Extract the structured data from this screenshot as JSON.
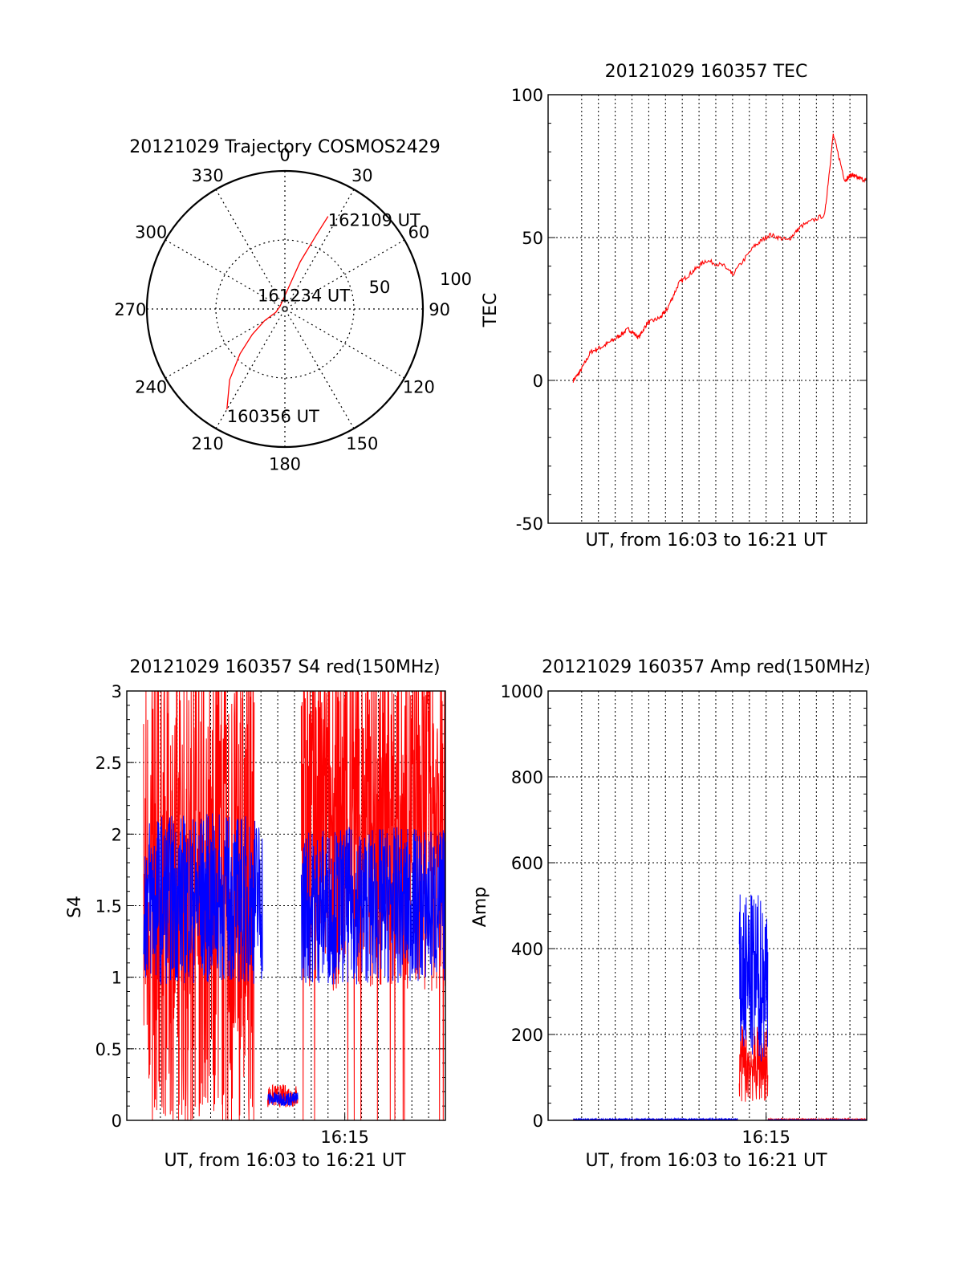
{
  "chart_data": [
    {
      "type": "polar",
      "title": "20121029 Trajectory COSMOS2429",
      "azimuth_labels": [
        "0",
        "30",
        "60",
        "90",
        "120",
        "150",
        "180",
        "210",
        "240",
        "270",
        "300",
        "330"
      ],
      "radial_labels": [
        "50",
        "100"
      ],
      "radial_range": [
        0,
        100
      ],
      "grid": true,
      "track": {
        "points_az_r": [
          [
            210,
            84
          ],
          [
            218,
            65
          ],
          [
            225,
            46
          ],
          [
            232,
            30
          ],
          [
            240,
            17
          ],
          [
            250,
            7
          ],
          [
            300,
            4
          ],
          [
            10,
            16
          ],
          [
            18,
            36
          ],
          [
            23,
            58
          ],
          [
            25,
            74
          ]
        ],
        "color": "#ff0000"
      },
      "annotations": [
        {
          "text": "162109 UT",
          "az": 25,
          "r": 74
        },
        {
          "text": "161234 UT",
          "az": 300,
          "r": 4
        },
        {
          "text": "160356 UT",
          "az": 210,
          "r": 84
        }
      ]
    },
    {
      "type": "line",
      "title": "20121029 160357 TEC",
      "xlabel": "UT, from 16:03 to 16:21 UT",
      "ylabel": "TEC",
      "xlim": [
        16.0333,
        16.35
      ],
      "ylim": [
        -50,
        100
      ],
      "yticks": [
        "100",
        "50",
        "0",
        "-50"
      ],
      "xticks": [],
      "grid": true,
      "series": [
        {
          "color": "#ff0000",
          "x": [
            16.0583,
            16.065,
            16.0758,
            16.0883,
            16.1017,
            16.1133,
            16.1233,
            16.1317,
            16.145,
            16.1517,
            16.1633,
            16.1767,
            16.19,
            16.2083,
            16.2167,
            16.2383,
            16.2533,
            16.2717,
            16.285,
            16.3083,
            16.3167,
            16.3283,
            16.335,
            16.34,
            16.35
          ],
          "values": [
            0,
            3,
            10,
            12,
            15,
            18,
            15,
            20,
            22,
            25,
            34,
            38,
            42,
            40,
            37,
            47,
            51,
            49,
            54,
            58,
            86,
            70,
            72,
            71,
            70
          ]
        }
      ]
    },
    {
      "type": "line",
      "title": "20121029 160357 S4 red(150MHz)",
      "xlabel": "UT, from 16:03 to 16:21 UT",
      "ylabel": "S4",
      "xlim": [
        16.0333,
        16.35
      ],
      "ylim": [
        0,
        3
      ],
      "yticks": [
        "3",
        "2.5",
        "2",
        "1.5",
        "1",
        "0.5",
        "0"
      ],
      "xticks": [
        "16:15"
      ],
      "grid": true,
      "series": [
        {
          "color": "#ff0000",
          "segments": [
            {
              "x": [
                16.05,
                16.16
              ],
              "mean": 1.6,
              "noise": 1.6
            },
            {
              "x": [
                16.1733,
                16.2033
              ],
              "mean": 0.17,
              "noise": 0.08
            },
            {
              "x": [
                16.2067,
                16.35
              ],
              "mean": 2.1,
              "noise": 1.2
            }
          ]
        },
        {
          "color": "#0000ff",
          "segments": [
            {
              "x": [
                16.05,
                16.1683
              ],
              "mean": 1.55,
              "noise": 0.6
            },
            {
              "x": [
                16.1733,
                16.2033
              ],
              "mean": 0.15,
              "noise": 0.05
            },
            {
              "x": [
                16.2067,
                16.35
              ],
              "mean": 1.5,
              "noise": 0.55
            }
          ]
        }
      ]
    },
    {
      "type": "line",
      "title": "20121029 160357 Amp red(150MHz)",
      "xlabel": "UT, from 16:03 to 16:21 UT",
      "ylabel": "Amp",
      "xlim": [
        16.0333,
        16.35
      ],
      "ylim": [
        0,
        1000
      ],
      "yticks": [
        "1000",
        "800",
        "600",
        "400",
        "200",
        "0"
      ],
      "xticks": [
        "16:15"
      ],
      "grid": true,
      "series": [
        {
          "color": "#ff0000",
          "segments": [
            {
              "x": [
                16.0583,
                16.2217
              ],
              "mean": 1,
              "noise": 1
            },
            {
              "x": [
                16.2233,
                16.2517
              ],
              "mean": 130,
              "noise": 90
            },
            {
              "x": [
                16.2517,
                16.35
              ],
              "mean": 2,
              "noise": 2
            }
          ]
        },
        {
          "color": "#0000ff",
          "segments": [
            {
              "x": [
                16.0583,
                16.2217
              ],
              "mean": 2,
              "noise": 2
            },
            {
              "x": [
                16.2233,
                16.2517
              ],
              "mean": 330,
              "noise": 200
            },
            {
              "x": [
                16.2517,
                16.35
              ],
              "mean": 1,
              "noise": 1
            }
          ]
        }
      ]
    }
  ]
}
